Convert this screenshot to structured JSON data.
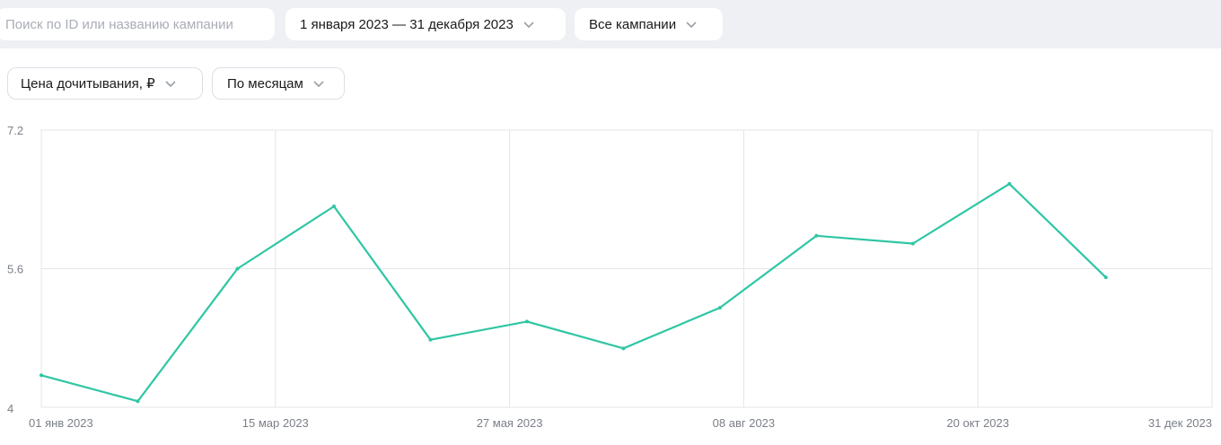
{
  "filters": {
    "search_placeholder": "Поиск по ID или названию кампании",
    "date_range": "1 января 2023 — 31 декабря 2023",
    "campaigns": "Все кампании"
  },
  "controls": {
    "metric": "Цена дочитывания, ₽",
    "period": "По месяцам"
  },
  "colors": {
    "line": "#2fc6a4",
    "grid": "#e3e5e9",
    "topbar": "#eef0f4"
  },
  "icons": [
    "chevron-down-icon"
  ],
  "chart_data": {
    "type": "line",
    "ylim": [
      4,
      7.2
    ],
    "yticks": [
      "7.2",
      "5.6",
      "4"
    ],
    "xticks": [
      "01 янв 2023",
      "15 мар 2023",
      "27 мая 2023",
      "08 авг 2023",
      "20 окт 2023",
      "31 дек 2023"
    ],
    "grid": true,
    "x": [
      "2023-01-01",
      "2023-01-31",
      "2023-03-03",
      "2023-04-02",
      "2023-05-02",
      "2023-06-01",
      "2023-07-01",
      "2023-07-31",
      "2023-08-30",
      "2023-09-29",
      "2023-10-29",
      "2023-11-28"
    ],
    "values": [
      4.37,
      4.07,
      5.6,
      6.32,
      4.78,
      4.99,
      4.68,
      5.15,
      5.98,
      5.89,
      6.58,
      5.5
    ]
  }
}
